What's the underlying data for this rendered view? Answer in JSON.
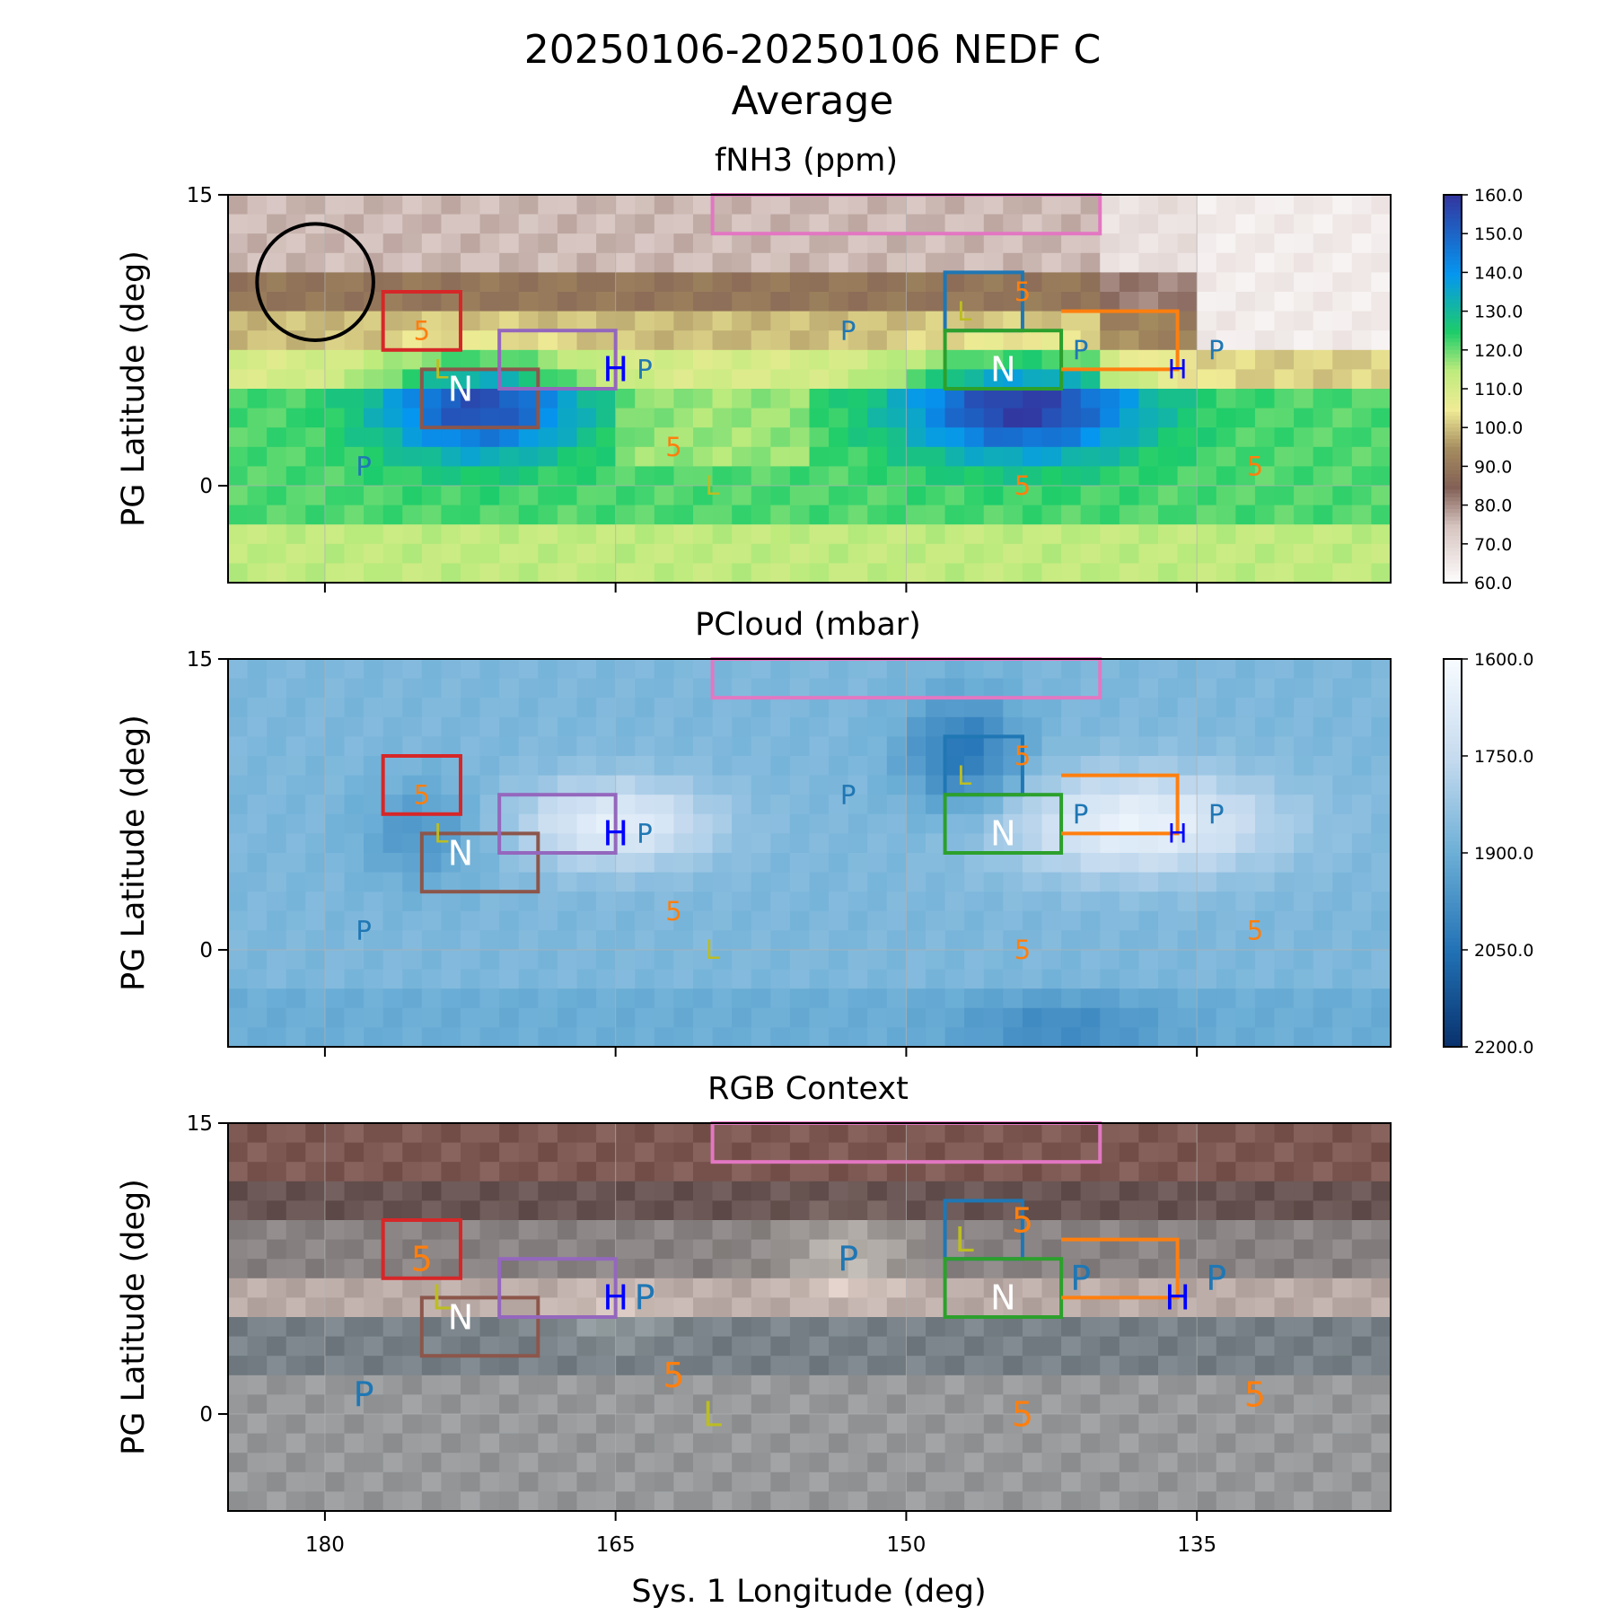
{
  "figure": {
    "title_line1": "20250106-20250106 NEDF C",
    "title_line2": "Average",
    "xlabel": "Sys. 1 Longitude (deg)",
    "ylabel": "PG Latitude (deg)"
  },
  "chart_data": [
    {
      "type": "heatmap",
      "title": "fNH3 (ppm)",
      "ylabel": "PG Latitude (deg)",
      "xlim": [
        185,
        125
      ],
      "ylim": [
        -5,
        15
      ],
      "xticks": [
        180,
        165,
        150,
        135
      ],
      "xticklabels": [
        "",
        "",
        "",
        ""
      ],
      "yticks": [
        15,
        0
      ],
      "yticklabels": [
        "15",
        "0"
      ],
      "grid": true,
      "colormap": "terrain_r",
      "colorbar": {
        "range": [
          60,
          160
        ],
        "ticks": [
          160,
          150,
          140,
          130,
          120,
          110,
          100,
          90,
          80,
          70,
          60
        ],
        "ticklabels": [
          "160.0",
          "150.0",
          "140.0",
          "130.0",
          "120.0",
          "110.0",
          "100.0",
          "90.0",
          "80.0",
          "70.0",
          "60.0"
        ]
      }
    },
    {
      "type": "heatmap",
      "title": "PCloud (mbar)",
      "ylabel": "PG Latitude (deg)",
      "xlim": [
        185,
        125
      ],
      "ylim": [
        -5,
        15
      ],
      "xticks": [
        180,
        165,
        150,
        135
      ],
      "xticklabels": [
        "",
        "",
        "",
        ""
      ],
      "yticks": [
        15,
        0
      ],
      "yticklabels": [
        "15",
        "0"
      ],
      "grid": true,
      "colormap": "Blues",
      "colorbar": {
        "range": [
          1600,
          2200
        ],
        "ticks": [
          1600,
          1750,
          1900,
          2050,
          2200
        ],
        "ticklabels": [
          "1600.0",
          "1750.0",
          "1900.0",
          "2050.0",
          "2200.0"
        ]
      }
    },
    {
      "type": "heatmap",
      "title": "RGB Context",
      "ylabel": "PG Latitude (deg)",
      "xlabel": "Sys. 1 Longitude (deg)",
      "xlim": [
        185,
        125
      ],
      "ylim": [
        -5,
        15
      ],
      "xticks": [
        180,
        165,
        150,
        135
      ],
      "xticklabels": [
        "180",
        "165",
        "150",
        "135"
      ],
      "yticks": [
        15,
        0
      ],
      "yticklabels": [
        "15",
        "0"
      ],
      "grid": true,
      "colormap": "rgb-image"
    }
  ],
  "annotations": {
    "boxes": [
      {
        "color": "#d62728",
        "lon": [
          177,
          173
        ],
        "lat": [
          7,
          10
        ]
      },
      {
        "color": "#8c564b",
        "lon": [
          175,
          169
        ],
        "lat": [
          3,
          6
        ]
      },
      {
        "color": "#9467bd",
        "lon": [
          171,
          165
        ],
        "lat": [
          5,
          8
        ]
      },
      {
        "color": "#e377c2",
        "lon": [
          160,
          140
        ],
        "lat": [
          13,
          15
        ]
      },
      {
        "color": "#1f77b4",
        "lon": [
          148,
          144
        ],
        "lat": [
          8,
          11
        ]
      },
      {
        "color": "#2ca02c",
        "lon": [
          148,
          142
        ],
        "lat": [
          5,
          8
        ]
      },
      {
        "color": "#ff7f0e",
        "lon": [
          142,
          136
        ],
        "lat": [
          6,
          9
        ],
        "open_left": true
      }
    ],
    "circle": {
      "lon": 180.5,
      "lat": 10.5,
      "r_deg": 3
    },
    "labels": [
      {
        "text": "N",
        "lon": 173,
        "lat": 5,
        "color": "#ffffff",
        "big": true
      },
      {
        "text": "N",
        "lon": 145,
        "lat": 6,
        "color": "#ffffff",
        "big": true
      },
      {
        "text": "P",
        "lon": 163.5,
        "lat": 6,
        "color": "#1f77b4"
      },
      {
        "text": "H",
        "lon": 165,
        "lat": 6,
        "color": "#0000ff",
        "big": true
      },
      {
        "text": "P",
        "lon": 153,
        "lat": 8,
        "color": "#1f77b4"
      },
      {
        "text": "P",
        "lon": 141,
        "lat": 7,
        "color": "#1f77b4"
      },
      {
        "text": "H",
        "lon": 136,
        "lat": 6,
        "color": "#0000ff"
      },
      {
        "text": "P",
        "lon": 134,
        "lat": 7,
        "color": "#1f77b4"
      },
      {
        "text": "P",
        "lon": 178,
        "lat": 1,
        "color": "#1f77b4"
      },
      {
        "text": "5",
        "lon": 175,
        "lat": 8,
        "color": "#ff7f0e"
      },
      {
        "text": "L",
        "lon": 174,
        "lat": 6,
        "color": "#bcbd22"
      },
      {
        "text": "5",
        "lon": 162,
        "lat": 2,
        "color": "#ff7f0e"
      },
      {
        "text": "L",
        "lon": 160,
        "lat": 0,
        "color": "#bcbd22"
      },
      {
        "text": "5",
        "lon": 144,
        "lat": 10,
        "color": "#ff7f0e"
      },
      {
        "text": "L",
        "lon": 147,
        "lat": 9,
        "color": "#bcbd22"
      },
      {
        "text": "5",
        "lon": 144,
        "lat": 0,
        "color": "#ff7f0e"
      },
      {
        "text": "5",
        "lon": 132,
        "lat": 1,
        "color": "#ff7f0e"
      }
    ]
  }
}
